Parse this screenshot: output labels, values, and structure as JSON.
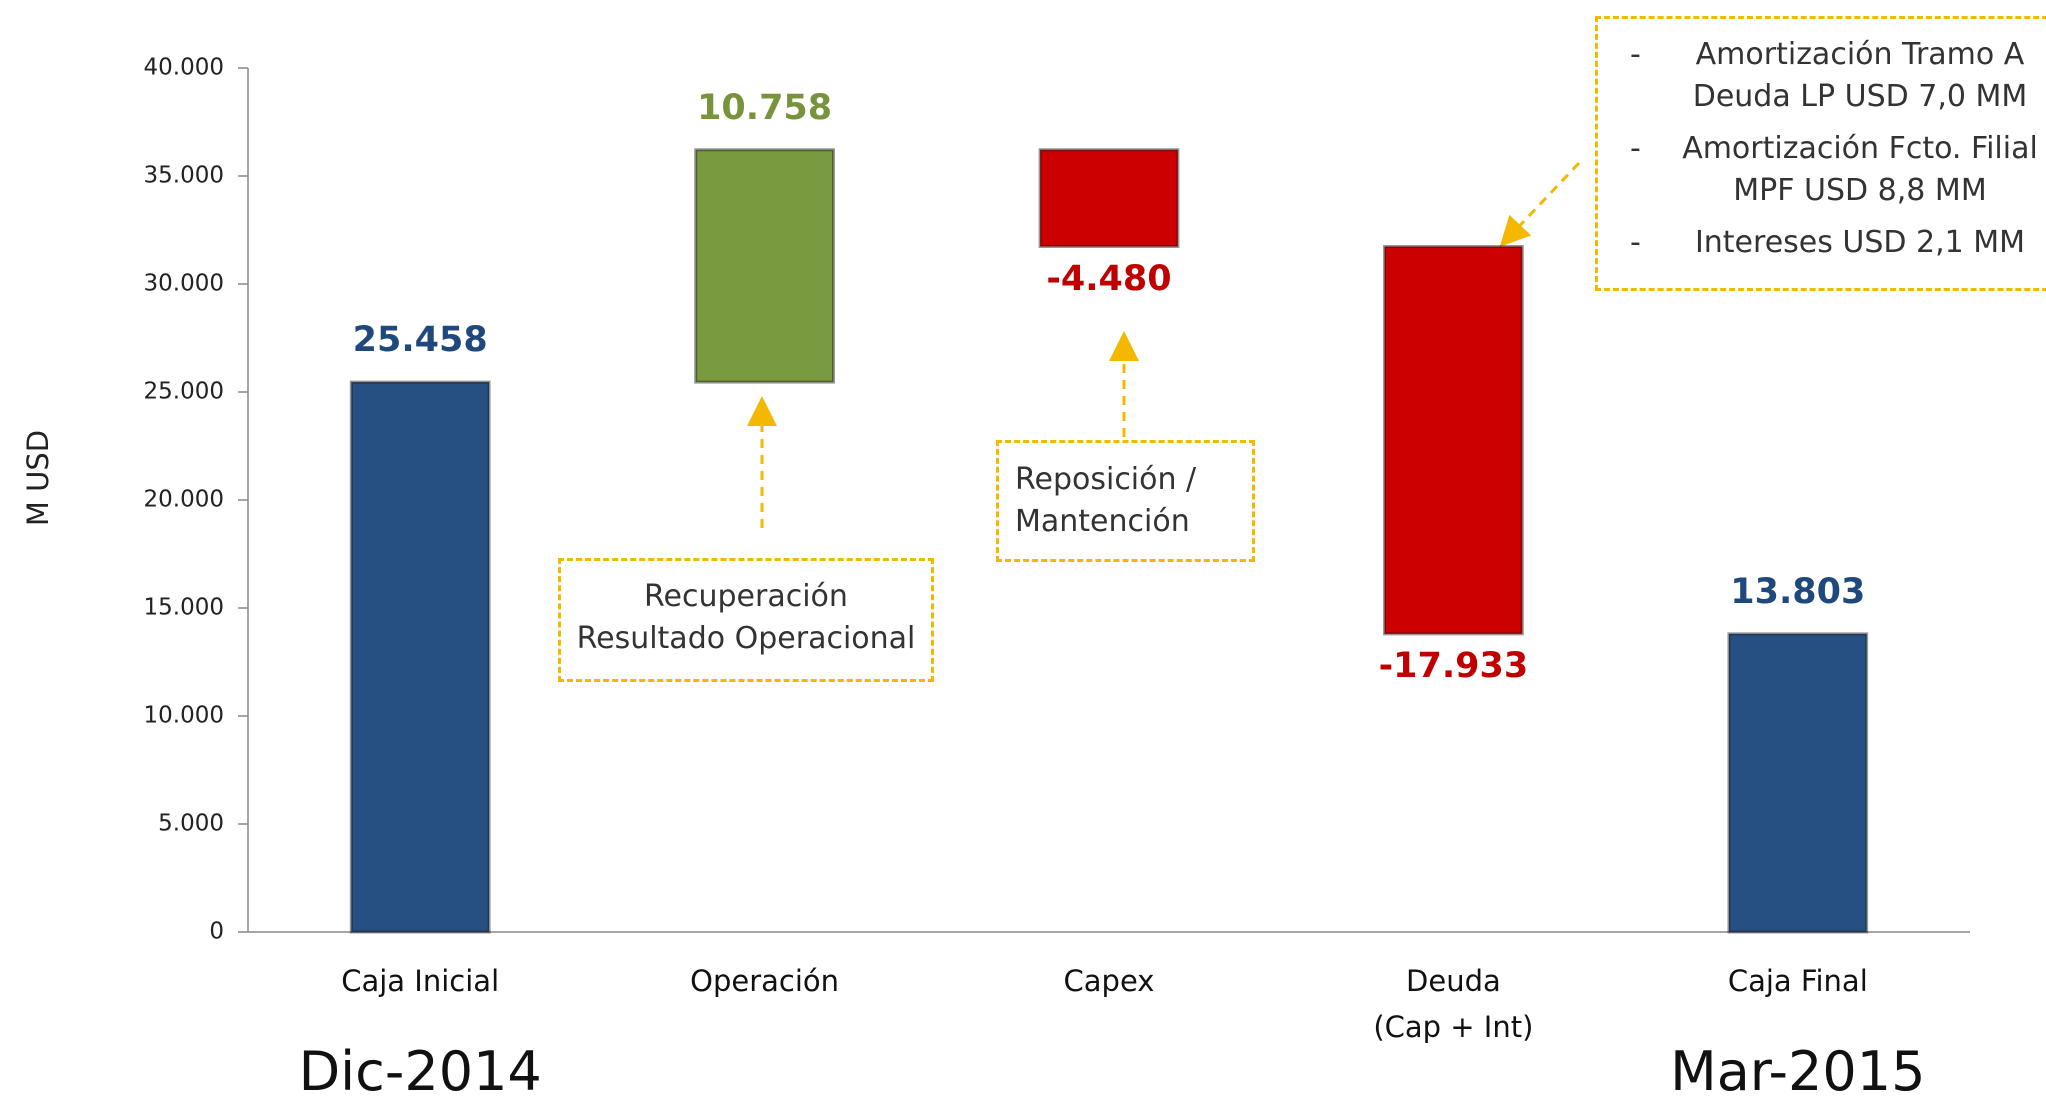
{
  "chart_data": {
    "type": "waterfall",
    "y_label": "M USD",
    "categories": [
      "Caja Inicial",
      "Operación",
      "Capex",
      "Deuda\n(Cap + Int)",
      "Caja Final"
    ],
    "values": [
      25458,
      10758,
      -4480,
      -17933,
      13803
    ],
    "value_labels": [
      "25.458",
      "10.758",
      "-4.480",
      "-17.933",
      "13.803"
    ],
    "totals": [
      true,
      false,
      false,
      false,
      true
    ],
    "colors": [
      "#264f82",
      "#7a9a40",
      "#cc0000",
      "#cc0000",
      "#264f82"
    ],
    "label_colors": [
      "#1f497d",
      "#77933c",
      "#c00000",
      "#c00000",
      "#1f497d"
    ],
    "ylim": [
      0,
      40000
    ],
    "yticks": [
      0,
      {
        "value": 5000,
        "label": "5.000"
      },
      {
        "value": 10000,
        "label": "10.000"
      },
      {
        "value": 15000,
        "label": "15.000"
      },
      {
        "value": 20000,
        "label": "20.000"
      },
      {
        "value": 25000,
        "label": "25.000"
      },
      {
        "value": 30000,
        "label": "30.000"
      },
      {
        "value": 35000,
        "label": "35.000"
      },
      {
        "value": 40000,
        "label": "40.000"
      }
    ],
    "grid": false,
    "period_labels": [
      "Dic-2014",
      "Mar-2015"
    ],
    "annotations": [
      {
        "lines": [
          "Recuperación",
          "Resultado Operacional"
        ]
      },
      {
        "lines": [
          "Reposición /",
          "Mantención"
        ]
      },
      {
        "items": [
          [
            "Amortización Tramo A",
            "Deuda LP USD 7,0 MM"
          ],
          [
            "Amortización Fcto. Filial",
            "MPF USD 8,8 MM"
          ],
          [
            "Intereses USD 2,1 MM"
          ]
        ]
      }
    ]
  }
}
